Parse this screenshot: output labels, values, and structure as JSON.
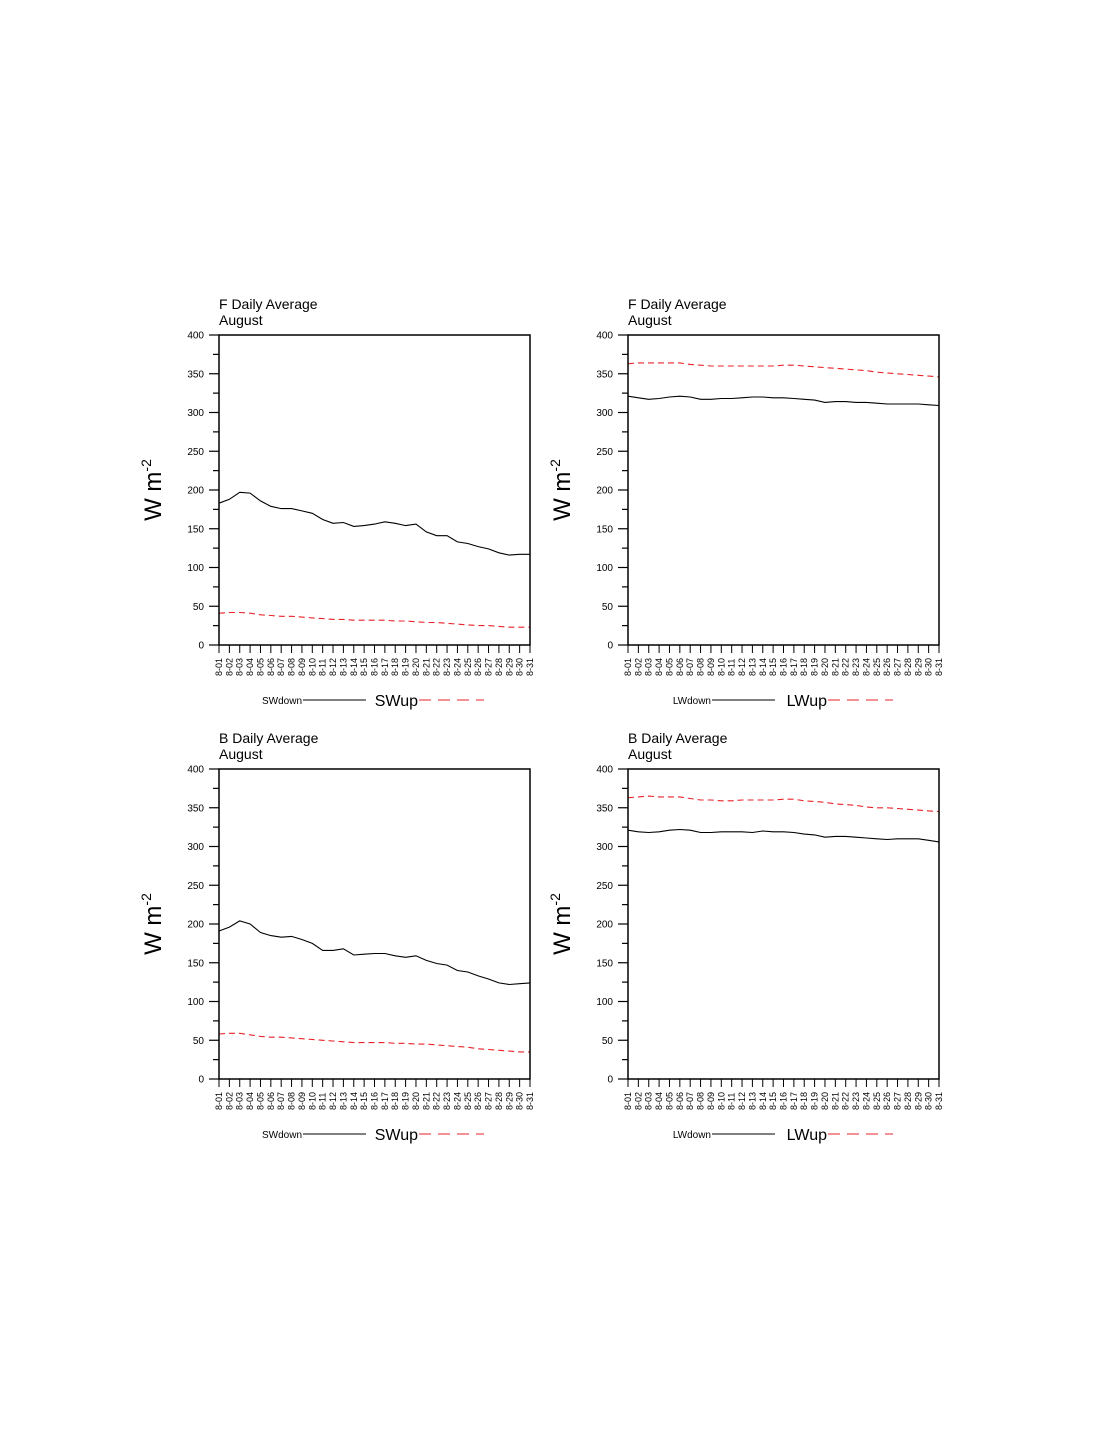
{
  "chart_data": [
    {
      "type": "line",
      "title": "F Daily Average",
      "subtitle": "August",
      "ylabel": "W m",
      "ylabel_superscript": "-2",
      "ylim": [
        0,
        400
      ],
      "yticks": [
        0,
        50,
        100,
        150,
        200,
        250,
        300,
        350,
        400
      ],
      "categories": [
        "8-01",
        "8-02",
        "8-03",
        "8-04",
        "8-05",
        "8-06",
        "8-07",
        "8-08",
        "8-09",
        "8-10",
        "8-11",
        "8-12",
        "8-13",
        "8-14",
        "8-15",
        "8-16",
        "8-17",
        "8-18",
        "8-19",
        "8-20",
        "8-21",
        "8-22",
        "8-23",
        "8-24",
        "8-25",
        "8-26",
        "8-27",
        "8-28",
        "8-29",
        "8-30",
        "8-31"
      ],
      "series": [
        {
          "name": "SWdown",
          "style": "solid",
          "color": "#000000",
          "values": [
            183,
            188,
            197,
            196,
            186,
            179,
            176,
            176,
            173,
            170,
            162,
            157,
            158,
            153,
            154,
            156,
            159,
            157,
            154,
            156,
            146,
            141,
            141,
            133,
            131,
            127,
            124,
            119,
            116,
            117,
            117
          ]
        },
        {
          "name": "SWup",
          "style": "dashed",
          "color": "#e8232a",
          "values": [
            41,
            42,
            42,
            41,
            39,
            38,
            37,
            37,
            36,
            35,
            34,
            33,
            33,
            32,
            32,
            32,
            32,
            31,
            31,
            30,
            29,
            29,
            28,
            27,
            26,
            25,
            25,
            24,
            23,
            23,
            23
          ]
        }
      ]
    },
    {
      "type": "line",
      "title": "F Daily Average",
      "subtitle": "August",
      "ylabel": "W m",
      "ylabel_superscript": "-2",
      "ylim": [
        0,
        400
      ],
      "yticks": [
        0,
        50,
        100,
        150,
        200,
        250,
        300,
        350,
        400
      ],
      "categories": [
        "8-01",
        "8-02",
        "8-03",
        "8-04",
        "8-05",
        "8-06",
        "8-07",
        "8-08",
        "8-09",
        "8-10",
        "8-11",
        "8-12",
        "8-13",
        "8-14",
        "8-15",
        "8-16",
        "8-17",
        "8-18",
        "8-19",
        "8-20",
        "8-21",
        "8-22",
        "8-23",
        "8-24",
        "8-25",
        "8-26",
        "8-27",
        "8-28",
        "8-29",
        "8-30",
        "8-31"
      ],
      "series": [
        {
          "name": "LWdown",
          "style": "solid",
          "color": "#000000",
          "values": [
            321,
            319,
            317,
            318,
            320,
            321,
            320,
            317,
            317,
            318,
            318,
            319,
            320,
            320,
            319,
            319,
            318,
            317,
            316,
            313,
            314,
            314,
            313,
            313,
            312,
            311,
            311,
            311,
            311,
            310,
            309
          ]
        },
        {
          "name": "LWup",
          "style": "dashed",
          "color": "#e8232a",
          "values": [
            363,
            364,
            364,
            364,
            364,
            364,
            362,
            361,
            360,
            360,
            360,
            360,
            360,
            360,
            360,
            361,
            361,
            360,
            359,
            358,
            357,
            356,
            355,
            354,
            352,
            351,
            350,
            349,
            348,
            347,
            346
          ]
        }
      ]
    },
    {
      "type": "line",
      "title": "B Daily Average",
      "subtitle": "August",
      "ylabel": "W m",
      "ylabel_superscript": "-2",
      "ylim": [
        0,
        400
      ],
      "yticks": [
        0,
        50,
        100,
        150,
        200,
        250,
        300,
        350,
        400
      ],
      "categories": [
        "8-01",
        "8-02",
        "8-03",
        "8-04",
        "8-05",
        "8-06",
        "8-07",
        "8-08",
        "8-09",
        "8-10",
        "8-11",
        "8-12",
        "8-13",
        "8-14",
        "8-15",
        "8-16",
        "8-17",
        "8-18",
        "8-19",
        "8-20",
        "8-21",
        "8-22",
        "8-23",
        "8-24",
        "8-25",
        "8-26",
        "8-27",
        "8-28",
        "8-29",
        "8-30",
        "8-31"
      ],
      "series": [
        {
          "name": "SWdown",
          "style": "solid",
          "color": "#000000",
          "values": [
            191,
            196,
            204,
            200,
            189,
            185,
            183,
            184,
            180,
            175,
            166,
            166,
            168,
            160,
            161,
            162,
            162,
            159,
            157,
            159,
            153,
            149,
            147,
            140,
            138,
            133,
            129,
            124,
            122,
            123,
            124
          ]
        },
        {
          "name": "SWup",
          "style": "dashed",
          "color": "#e8232a",
          "values": [
            58,
            59,
            59,
            57,
            55,
            54,
            54,
            53,
            52,
            51,
            50,
            49,
            48,
            47,
            47,
            47,
            47,
            46,
            46,
            45,
            45,
            44,
            43,
            42,
            41,
            39,
            38,
            37,
            36,
            35,
            35
          ]
        }
      ]
    },
    {
      "type": "line",
      "title": "B Daily Average",
      "subtitle": "August",
      "ylabel": "W m",
      "ylabel_superscript": "-2",
      "ylim": [
        0,
        400
      ],
      "yticks": [
        0,
        50,
        100,
        150,
        200,
        250,
        300,
        350,
        400
      ],
      "categories": [
        "8-01",
        "8-02",
        "8-03",
        "8-04",
        "8-05",
        "8-06",
        "8-07",
        "8-08",
        "8-09",
        "8-10",
        "8-11",
        "8-12",
        "8-13",
        "8-14",
        "8-15",
        "8-16",
        "8-17",
        "8-18",
        "8-19",
        "8-20",
        "8-21",
        "8-22",
        "8-23",
        "8-24",
        "8-25",
        "8-26",
        "8-27",
        "8-28",
        "8-29",
        "8-30",
        "8-31"
      ],
      "series": [
        {
          "name": "LWdown",
          "style": "solid",
          "color": "#000000",
          "values": [
            321,
            319,
            318,
            319,
            321,
            322,
            321,
            318,
            318,
            319,
            319,
            319,
            318,
            320,
            319,
            319,
            318,
            316,
            315,
            312,
            313,
            313,
            312,
            311,
            310,
            309,
            310,
            310,
            310,
            308,
            306
          ]
        },
        {
          "name": "LWup",
          "style": "dashed",
          "color": "#e8232a",
          "values": [
            363,
            364,
            365,
            364,
            364,
            364,
            362,
            360,
            360,
            359,
            359,
            360,
            360,
            360,
            360,
            361,
            361,
            359,
            358,
            357,
            355,
            354,
            353,
            351,
            350,
            350,
            349,
            348,
            347,
            346,
            345
          ]
        }
      ]
    }
  ]
}
